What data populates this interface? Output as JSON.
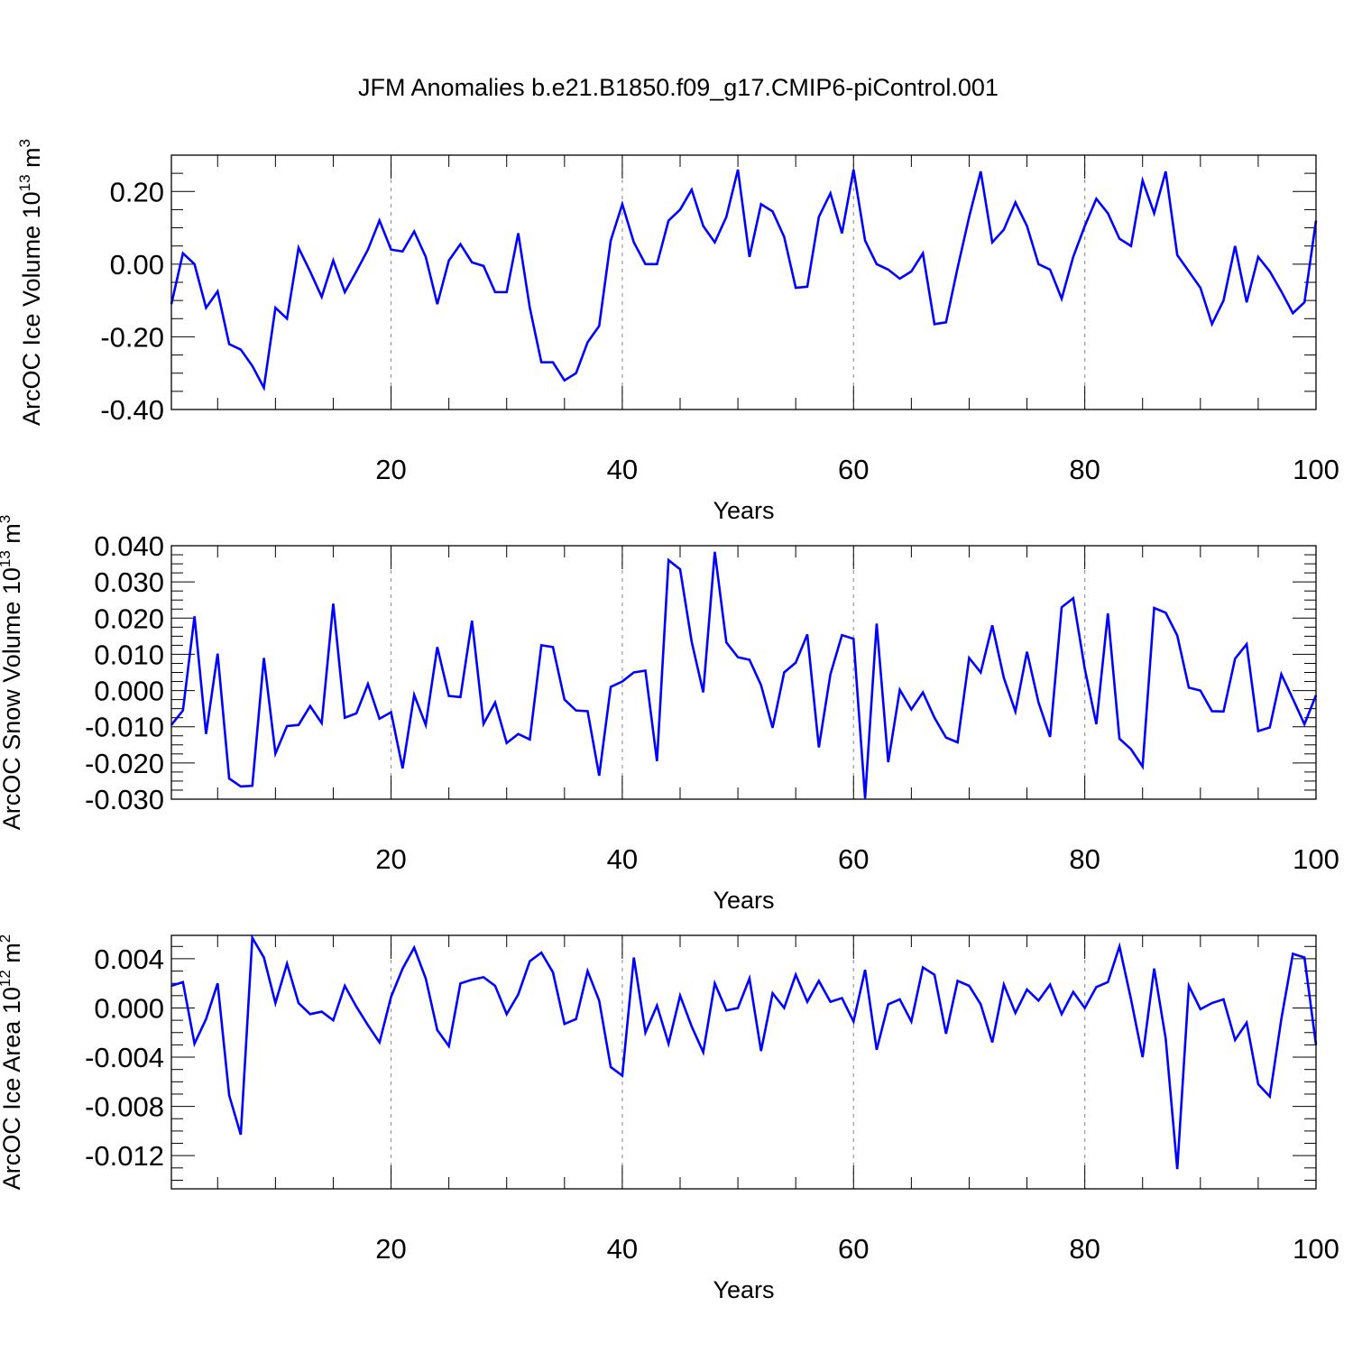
{
  "figure_title": "JFM Anomalies b.e21.B1850.f09_g17.CMIP6-piControl.001",
  "chart_data": [
    {
      "type": "line",
      "title": "",
      "xlabel": "Years",
      "ylabel": "ArcOC Ice Volume 10",
      "ylabel_exp": "13",
      "ylabel_unit": " m",
      "ylabel_unit_exp": "3",
      "xlim": [
        1,
        100
      ],
      "ylim": [
        -0.4,
        0.3
      ],
      "xticks": [
        20,
        40,
        60,
        80,
        100
      ],
      "xtick_labels": [
        "20",
        "40",
        "60",
        "80",
        "100"
      ],
      "yticks": [
        -0.4,
        -0.2,
        0.0,
        0.2
      ],
      "ytick_labels": [
        "-0.40",
        "-0.20",
        "0.00",
        "0.20"
      ],
      "grid": "vertical dashed at major x ticks",
      "series": [
        {
          "name": "ArcOC Ice Volume anomaly",
          "color": "#0000ff",
          "x": [
            1,
            2,
            3,
            4,
            5,
            6,
            7,
            8,
            9,
            10,
            11,
            12,
            13,
            14,
            15,
            16,
            17,
            18,
            19,
            20,
            21,
            22,
            23,
            24,
            25,
            26,
            27,
            28,
            29,
            30,
            31,
            32,
            33,
            34,
            35,
            36,
            37,
            38,
            39,
            40,
            41,
            42,
            43,
            44,
            45,
            46,
            47,
            48,
            49,
            50,
            51,
            52,
            53,
            54,
            55,
            56,
            57,
            58,
            59,
            60,
            61,
            62,
            63,
            64,
            65,
            66,
            67,
            68,
            69,
            70,
            71,
            72,
            73,
            74,
            75,
            76,
            77,
            78,
            79,
            80,
            81,
            82,
            83,
            84,
            85,
            86,
            87,
            88,
            89,
            90,
            91,
            92,
            93,
            94,
            95,
            96,
            97,
            98,
            99,
            100
          ],
          "values": [
            -0.11,
            0.03,
            0.0,
            -0.12,
            -0.075,
            -0.22,
            -0.235,
            -0.28,
            -0.34,
            -0.12,
            -0.15,
            0.045,
            -0.02,
            -0.09,
            0.01,
            -0.077,
            -0.02,
            0.04,
            0.12,
            0.04,
            0.035,
            0.09,
            0.02,
            -0.11,
            0.01,
            0.055,
            0.005,
            -0.005,
            -0.077,
            -0.077,
            0.085,
            -0.12,
            -0.27,
            -0.27,
            -0.32,
            -0.3,
            -0.215,
            -0.17,
            0.065,
            0.165,
            0.06,
            0.0,
            0.0,
            0.12,
            0.15,
            0.205,
            0.105,
            0.06,
            0.13,
            0.26,
            0.02,
            0.165,
            0.145,
            0.075,
            -0.065,
            -0.062,
            0.13,
            0.195,
            0.085,
            0.26,
            0.065,
            0.0,
            -0.015,
            -0.04,
            -0.02,
            0.03,
            -0.165,
            -0.16,
            -0.01,
            0.13,
            0.255,
            0.06,
            0.095,
            0.17,
            0.105,
            0.0,
            -0.015,
            -0.095,
            0.02,
            0.105,
            0.18,
            0.14,
            0.07,
            0.05,
            0.23,
            0.14,
            0.255,
            0.025,
            -0.02,
            -0.065,
            -0.165,
            -0.1,
            0.05,
            -0.105,
            0.02,
            -0.02,
            -0.075,
            -0.135,
            -0.105,
            0.12
          ]
        }
      ]
    },
    {
      "type": "line",
      "title": "",
      "xlabel": "Years",
      "ylabel": "ArcOC Snow Volume 10",
      "ylabel_exp": "13",
      "ylabel_unit": " m",
      "ylabel_unit_exp": "3",
      "xlim": [
        1,
        100
      ],
      "ylim": [
        -0.03,
        0.04
      ],
      "xticks": [
        20,
        40,
        60,
        80,
        100
      ],
      "xtick_labels": [
        "20",
        "40",
        "60",
        "80",
        "100"
      ],
      "yticks": [
        -0.03,
        -0.02,
        -0.01,
        0.0,
        0.01,
        0.02,
        0.03,
        0.04
      ],
      "ytick_labels": [
        "-0.030",
        "-0.020",
        "-0.010",
        "0.000",
        "0.010",
        "0.020",
        "0.030",
        "0.040"
      ],
      "grid": "vertical dashed at major x ticks",
      "series": [
        {
          "name": "ArcOC Snow Volume anomaly",
          "color": "#0000ff",
          "x": [
            1,
            2,
            3,
            4,
            5,
            6,
            7,
            8,
            9,
            10,
            11,
            12,
            13,
            14,
            15,
            16,
            17,
            18,
            19,
            20,
            21,
            22,
            23,
            24,
            25,
            26,
            27,
            28,
            29,
            30,
            31,
            32,
            33,
            34,
            35,
            36,
            37,
            38,
            39,
            40,
            41,
            42,
            43,
            44,
            45,
            46,
            47,
            48,
            49,
            50,
            51,
            52,
            53,
            54,
            55,
            56,
            57,
            58,
            59,
            60,
            61,
            62,
            63,
            64,
            65,
            66,
            67,
            68,
            69,
            70,
            71,
            72,
            73,
            74,
            75,
            76,
            77,
            78,
            79,
            80,
            81,
            82,
            83,
            84,
            85,
            86,
            87,
            88,
            89,
            90,
            91,
            92,
            93,
            94,
            95,
            96,
            97,
            98,
            99,
            100
          ],
          "values": [
            -0.0095,
            -0.0055,
            0.0205,
            -0.012,
            0.0102,
            -0.0243,
            -0.0265,
            -0.0263,
            0.009,
            -0.0174,
            -0.0098,
            -0.0095,
            -0.0043,
            -0.009,
            0.024,
            -0.0075,
            -0.0063,
            0.0018,
            -0.0078,
            -0.006,
            -0.0215,
            -0.0012,
            -0.0095,
            0.012,
            -0.0015,
            -0.0018,
            0.0193,
            -0.0092,
            -0.0033,
            -0.0145,
            -0.012,
            -0.0135,
            0.0125,
            0.012,
            -0.0025,
            -0.0055,
            -0.0057,
            -0.0235,
            0.001,
            0.0025,
            0.005,
            0.0055,
            -0.0195,
            0.036,
            0.0335,
            0.0135,
            -0.0005,
            0.0383,
            0.0133,
            0.0092,
            0.0085,
            0.0015,
            -0.0103,
            0.005,
            0.0077,
            0.0155,
            -0.0157,
            0.0045,
            0.0153,
            0.0143,
            -0.0298,
            0.0185,
            -0.0198,
            0.0002,
            -0.0052,
            -0.0005,
            -0.0075,
            -0.013,
            -0.0143,
            0.009,
            0.005,
            0.018,
            0.0035,
            -0.0058,
            0.0107,
            -0.0033,
            -0.0128,
            0.023,
            0.0255,
            0.006,
            -0.0093,
            0.0213,
            -0.0133,
            -0.0162,
            -0.021,
            0.0228,
            0.0215,
            0.0152,
            0.0008,
            0.0,
            -0.0057,
            -0.0058,
            0.0088,
            0.0128,
            -0.0112,
            -0.0102,
            0.0045,
            -0.0023,
            -0.0093,
            -0.0013
          ]
        }
      ]
    },
    {
      "type": "line",
      "title": "",
      "xlabel": "Years",
      "ylabel": "ArcOC Ice Area 10",
      "ylabel_exp": "12",
      "ylabel_unit": " m",
      "ylabel_unit_exp": "2",
      "xlim": [
        1,
        100
      ],
      "ylim": [
        -0.0147,
        0.0059
      ],
      "xticks": [
        20,
        40,
        60,
        80,
        100
      ],
      "xtick_labels": [
        "20",
        "40",
        "60",
        "80",
        "100"
      ],
      "yticks": [
        -0.012,
        -0.008,
        -0.004,
        0.0,
        0.004
      ],
      "ytick_labels": [
        "-0.012",
        "-0.008",
        "-0.004",
        "0.000",
        "0.004"
      ],
      "grid": "vertical dashed at major x ticks",
      "series": [
        {
          "name": "ArcOC Ice Area anomaly",
          "color": "#0000ff",
          "x": [
            1,
            2,
            3,
            4,
            5,
            6,
            7,
            8,
            9,
            10,
            11,
            12,
            13,
            14,
            15,
            16,
            17,
            18,
            19,
            20,
            21,
            22,
            23,
            24,
            25,
            26,
            27,
            28,
            29,
            30,
            31,
            32,
            33,
            34,
            35,
            36,
            37,
            38,
            39,
            40,
            41,
            42,
            43,
            44,
            45,
            46,
            47,
            48,
            49,
            50,
            51,
            52,
            53,
            54,
            55,
            56,
            57,
            58,
            59,
            60,
            61,
            62,
            63,
            64,
            65,
            66,
            67,
            68,
            69,
            70,
            71,
            72,
            73,
            74,
            75,
            76,
            77,
            78,
            79,
            80,
            81,
            82,
            83,
            84,
            85,
            86,
            87,
            88,
            89,
            90,
            91,
            92,
            93,
            94,
            95,
            96,
            97,
            98,
            99,
            100
          ],
          "values": [
            0.0018,
            0.0021,
            -0.0029,
            -0.0009,
            0.002,
            -0.0071,
            -0.0103,
            0.0057,
            0.0041,
            0.0004,
            0.0036,
            0.0004,
            -0.0005,
            -0.0003,
            -0.001,
            0.0018,
            0.0001,
            -0.0014,
            -0.0028,
            0.0009,
            0.0032,
            0.0049,
            0.0024,
            -0.0018,
            -0.0031,
            0.002,
            0.0023,
            0.0025,
            0.0018,
            -0.0005,
            0.0011,
            0.0038,
            0.0045,
            0.0029,
            -0.0013,
            -0.0009,
            0.003,
            0.0006,
            -0.0048,
            -0.0055,
            0.0041,
            -0.002,
            0.0002,
            -0.0029,
            0.001,
            -0.0015,
            -0.0036,
            0.002,
            -0.0002,
            0.0,
            0.0024,
            -0.0035,
            0.0012,
            0.0,
            0.0027,
            0.0005,
            0.0022,
            0.0005,
            0.0008,
            -0.0011,
            0.0031,
            -0.0034,
            0.0003,
            0.0007,
            -0.0011,
            0.0033,
            0.0027,
            -0.0021,
            0.0022,
            0.0018,
            0.0003,
            -0.0028,
            0.0019,
            -0.0004,
            0.0015,
            0.0006,
            0.0019,
            -0.0005,
            0.0013,
            0.0,
            0.0017,
            0.0021,
            0.005,
            0.0007,
            -0.004,
            0.0032,
            -0.0025,
            -0.0131,
            0.0018,
            -0.0001,
            0.0004,
            0.0007,
            -0.0026,
            -0.0012,
            -0.0062,
            -0.0072,
            -0.0009,
            0.0044,
            0.0041,
            -0.003
          ]
        }
      ]
    }
  ]
}
